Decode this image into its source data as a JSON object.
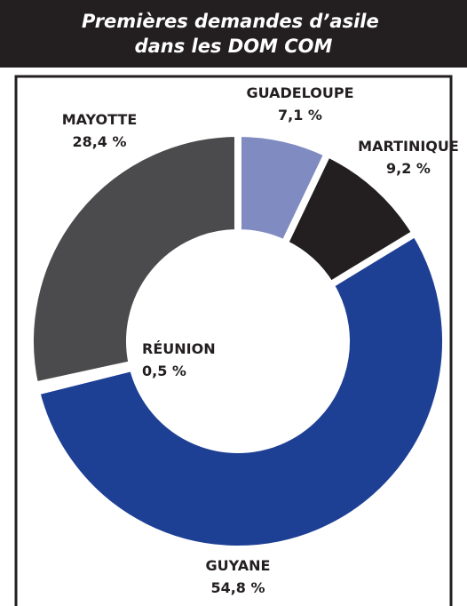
{
  "chart_data": {
    "type": "donut",
    "title": [
      "Premières demandes d’asile",
      "dans les DOM COM"
    ],
    "categories": [
      "GUADELOUPE",
      "MARTINIQUE",
      "GUYANE",
      "RÉUNION",
      "MAYOTTE"
    ],
    "values": [
      7.1,
      9.2,
      54.8,
      0.5,
      28.4
    ],
    "value_labels": [
      "7,1 %",
      "9,2 %",
      "54,8 %",
      "0,5 %",
      "28,4 %"
    ],
    "colors": [
      "#7f8bc1",
      "#231f20",
      "#1d3f94",
      "#c6c6c6",
      "#4b4b4d"
    ]
  }
}
